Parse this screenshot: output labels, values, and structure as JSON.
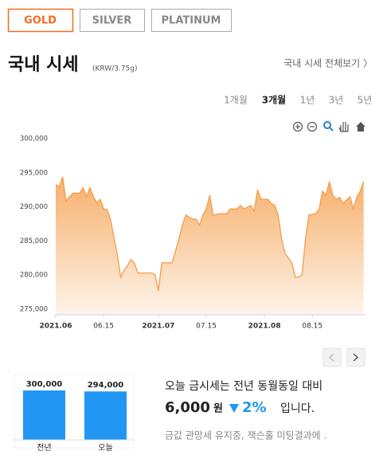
{
  "tabs": {
    "items": [
      "GOLD",
      "SILVER",
      "PLATINUM"
    ],
    "active": 0
  },
  "header": {
    "title": "국내 시세",
    "unit": "(KRW/3.75g)",
    "link": "국내 시세 전체보기 〉"
  },
  "periods": {
    "items": [
      "1개월",
      "3개월",
      "1년",
      "3년",
      "5년"
    ],
    "active": 1
  },
  "chart_data": [
    {
      "type": "area",
      "color": "#f5a04f",
      "x": [
        0,
        1,
        2,
        3,
        5,
        6,
        7,
        8,
        9,
        10,
        11,
        12,
        13,
        14,
        15,
        16,
        18,
        19,
        20,
        21,
        22,
        23,
        24,
        26,
        28,
        29,
        30,
        31,
        33,
        34,
        35,
        36,
        37,
        38,
        40,
        41,
        42,
        43,
        44,
        45,
        46,
        48,
        50,
        51,
        52,
        53,
        54,
        55,
        57,
        58,
        59,
        60,
        62,
        63,
        64,
        65,
        66,
        67,
        69,
        70,
        71,
        72,
        73,
        74,
        76,
        77,
        78,
        79,
        80,
        81,
        82,
        83,
        84,
        86,
        87,
        88,
        89,
        90
      ],
      "values": [
        293300,
        292900,
        294400,
        290900,
        292000,
        292000,
        292000,
        292800,
        291500,
        292800,
        291500,
        290600,
        291100,
        289700,
        289600,
        288200,
        283000,
        279700,
        280700,
        281400,
        282300,
        281700,
        280300,
        280300,
        280300,
        280100,
        277700,
        281800,
        281800,
        281800,
        283500,
        285300,
        287300,
        288800,
        288200,
        288200,
        287300,
        288800,
        289700,
        291700,
        288800,
        289000,
        289000,
        289700,
        289700,
        289700,
        290200,
        289700,
        290200,
        289400,
        292500,
        291100,
        291100,
        290500,
        290200,
        288800,
        285300,
        283200,
        281800,
        279700,
        279700,
        280100,
        285300,
        288800,
        289000,
        289700,
        292300,
        291700,
        293700,
        291700,
        291100,
        291400,
        290500,
        291500,
        289700,
        291400,
        292300,
        293700
      ],
      "xlim": [
        0,
        91
      ],
      "xticks": [
        {
          "value": 0,
          "label": "2021.06"
        },
        {
          "value": 14,
          "label": "06.15"
        },
        {
          "value": 30,
          "label": "2021.07"
        },
        {
          "value": 44,
          "label": "07.15"
        },
        {
          "value": 61,
          "label": "2021.08"
        },
        {
          "value": 75,
          "label": "08.15"
        }
      ],
      "ylim": [
        275000,
        300000
      ],
      "yticks": [
        {
          "value": 275000,
          "label": "275,000"
        },
        {
          "value": 280000,
          "label": "280,000"
        },
        {
          "value": 285000,
          "label": "285,000"
        },
        {
          "value": 290000,
          "label": "290,000"
        },
        {
          "value": 295000,
          "label": "295,000"
        },
        {
          "value": 300000,
          "label": "300,000"
        }
      ],
      "grid": false
    },
    {
      "type": "bar",
      "color": "#2196f3",
      "categories": [
        "전년",
        "오늘"
      ],
      "values": [
        300000,
        294000
      ],
      "value_labels": [
        "300,000",
        "294,000"
      ],
      "ylim": [
        0,
        300000
      ]
    }
  ],
  "summary": {
    "line1": "오늘 금시세는 전년 동월동일 대비",
    "amount": "6,000",
    "unit": "원",
    "change": "2%",
    "tail": "입니다.",
    "comment": "금값 관망세 유지중, 잭슨홀 미팅결과에 ."
  }
}
